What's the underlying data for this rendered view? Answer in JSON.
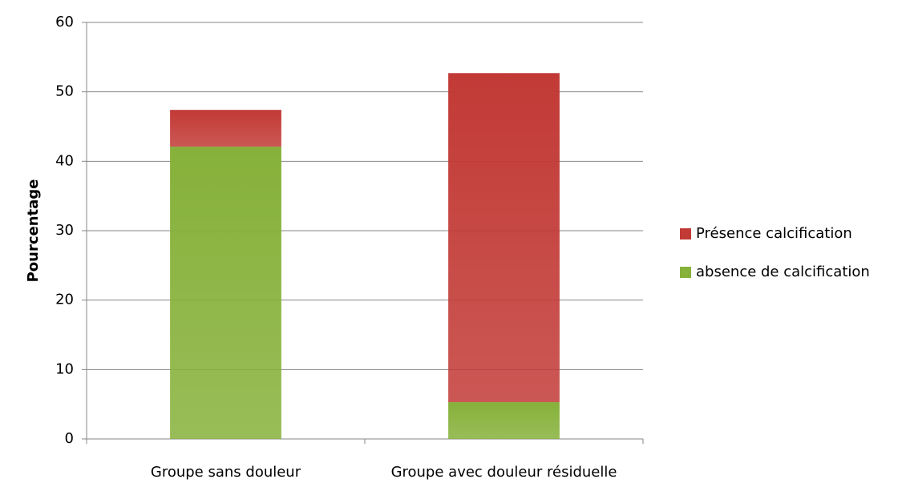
{
  "chart_data": {
    "type": "stacked_bar",
    "y_label": "Pourcentage",
    "categories": [
      "Groupe sans douleur",
      "Groupe avec douleur résiduelle"
    ],
    "series": [
      {
        "name": "absence de calcification",
        "color": "#86b13a",
        "values": [
          42.1,
          5.3
        ]
      },
      {
        "name": "Présence calcification",
        "color": "#c23a36",
        "values": [
          5.3,
          47.4
        ]
      }
    ],
    "ylim": [
      0,
      60
    ],
    "yticks": [
      0,
      10,
      20,
      30,
      40,
      50,
      60
    ],
    "grid": true,
    "legend": "right"
  }
}
